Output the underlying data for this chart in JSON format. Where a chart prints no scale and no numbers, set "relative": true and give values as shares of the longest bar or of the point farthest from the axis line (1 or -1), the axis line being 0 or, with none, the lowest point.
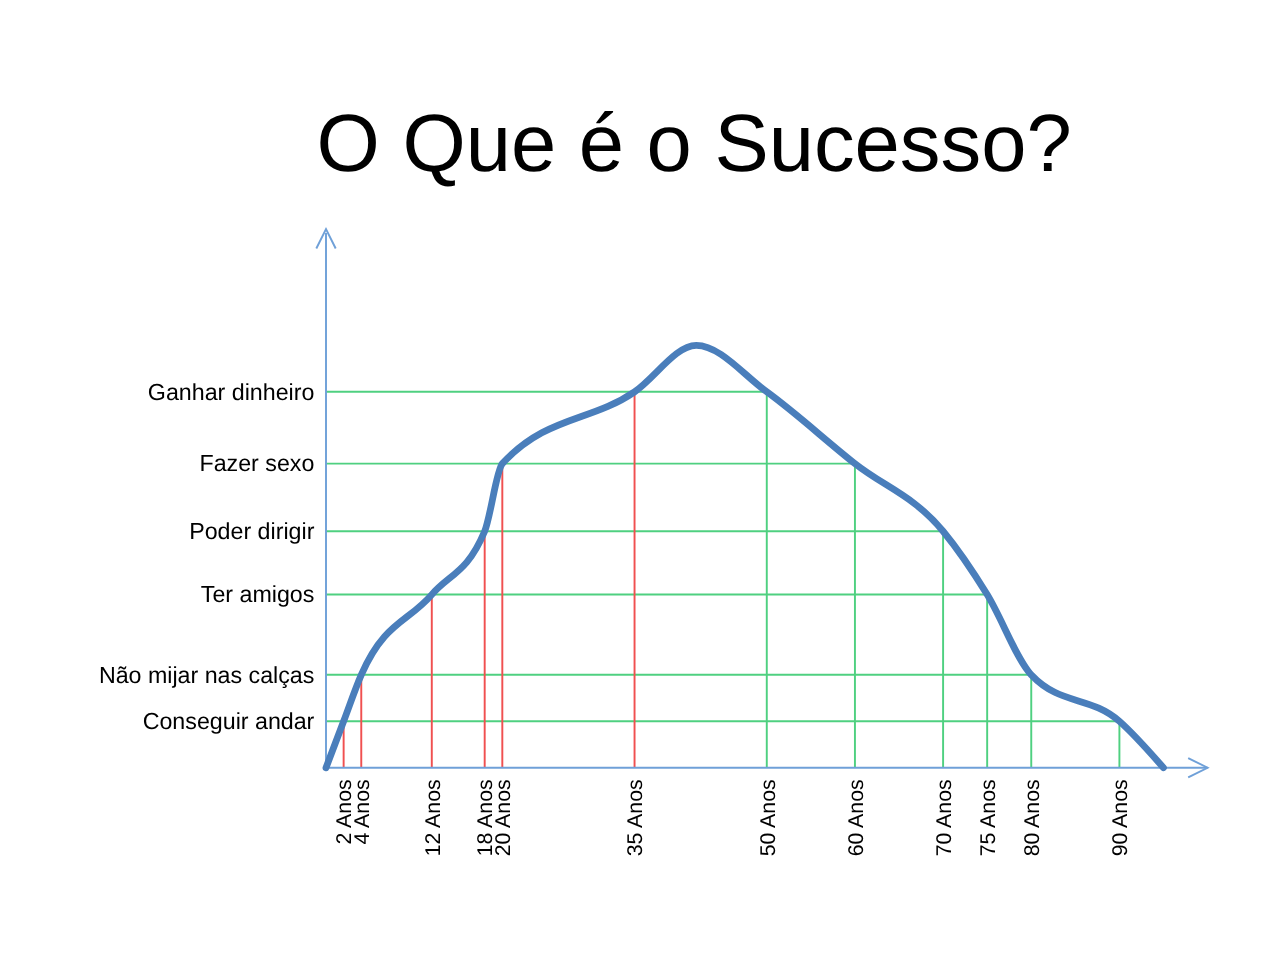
{
  "chart_data": {
    "type": "line",
    "title": "O Que é o Sucesso?",
    "relative": true,
    "xlim": [
      0,
      100
    ],
    "xticks": [
      {
        "value": 2,
        "label": "2 Anos"
      },
      {
        "value": 4,
        "label": "4 Anos"
      },
      {
        "value": 12,
        "label": "12 Anos"
      },
      {
        "value": 18,
        "label": "18 Anos"
      },
      {
        "value": 20,
        "label": "20 Anos"
      },
      {
        "value": 35,
        "label": "35 Anos"
      },
      {
        "value": 50,
        "label": "50 Anos"
      },
      {
        "value": 60,
        "label": "60 Anos"
      },
      {
        "value": 70,
        "label": "70 Anos"
      },
      {
        "value": 75,
        "label": "75 Anos"
      },
      {
        "value": 80,
        "label": "80 Anos"
      },
      {
        "value": 90,
        "label": "90 Anos"
      }
    ],
    "ref_lines": [
      {
        "axis": "y",
        "value": 0.89,
        "label": "Ganhar dinheiro",
        "color": "#4fd080"
      },
      {
        "axis": "y",
        "value": 0.72,
        "label": "Fazer sexo",
        "color": "#4fd080"
      },
      {
        "axis": "y",
        "value": 0.56,
        "label": "Poder dirigir",
        "color": "#4fd080"
      },
      {
        "axis": "y",
        "value": 0.41,
        "label": "Ter amigos",
        "color": "#4fd080"
      },
      {
        "axis": "y",
        "value": 0.22,
        "label": "Não mijar nas calças",
        "color": "#4fd080"
      },
      {
        "axis": "y",
        "value": 0.11,
        "label": "Conseguir andar",
        "color": "#4fd080"
      },
      {
        "axis": "x",
        "value": 2,
        "color": "#f05050"
      },
      {
        "axis": "x",
        "value": 4,
        "color": "#f05050"
      },
      {
        "axis": "x",
        "value": 12,
        "color": "#f05050"
      },
      {
        "axis": "x",
        "value": 18,
        "color": "#f05050"
      },
      {
        "axis": "x",
        "value": 20,
        "color": "#f05050"
      },
      {
        "axis": "x",
        "value": 35,
        "color": "#f05050"
      },
      {
        "axis": "x",
        "value": 50,
        "color": "#4fd080"
      },
      {
        "axis": "x",
        "value": 60,
        "color": "#4fd080"
      },
      {
        "axis": "x",
        "value": 70,
        "color": "#4fd080"
      },
      {
        "axis": "x",
        "value": 75,
        "color": "#4fd080"
      },
      {
        "axis": "x",
        "value": 80,
        "color": "#4fd080"
      },
      {
        "axis": "x",
        "value": 90,
        "color": "#4fd080"
      }
    ],
    "x": [
      0,
      2,
      4,
      12,
      18,
      20,
      35,
      42,
      50,
      60,
      70,
      75,
      80,
      90,
      95
    ],
    "series": [
      {
        "color": "#4a7ebb",
        "values": [
          0,
          0.11,
          0.22,
          0.41,
          0.56,
          0.72,
          0.89,
          1,
          0.89,
          0.72,
          0.56,
          0.41,
          0.22,
          0.11,
          0
        ]
      }
    ]
  }
}
